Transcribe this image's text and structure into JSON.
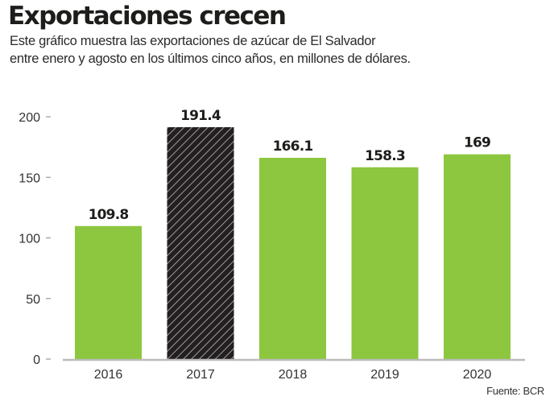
{
  "chart_data": {
    "type": "bar",
    "title": "Exportaciones crecen",
    "subtitle_lines": [
      "Este gráfico muestra las exportaciones de azúcar de El Salvador",
      "entre enero y agosto en los últimos cinco años, en millones de dólares."
    ],
    "categories": [
      "2016",
      "2017",
      "2018",
      "2019",
      "2020"
    ],
    "values": [
      109.8,
      191.4,
      166.1,
      158.3,
      169
    ],
    "value_labels": [
      "109.8",
      "191.4",
      "166.1",
      "158.3",
      "169"
    ],
    "highlighted": [
      "2017"
    ],
    "xlabel": "",
    "ylabel": "",
    "ylim": [
      0,
      200
    ],
    "yticks": [
      0,
      50,
      100,
      150,
      200
    ],
    "ytick_labels": [
      "0",
      "50",
      "100",
      "150",
      "200"
    ],
    "grid": false,
    "source": "Fuente: BCR",
    "colors": {
      "bar": "#8dc63f",
      "highlight_bar": "#231f20",
      "hatch": "#bdbdbd",
      "axis": "#bbbbbb",
      "tick": "#999999"
    }
  }
}
